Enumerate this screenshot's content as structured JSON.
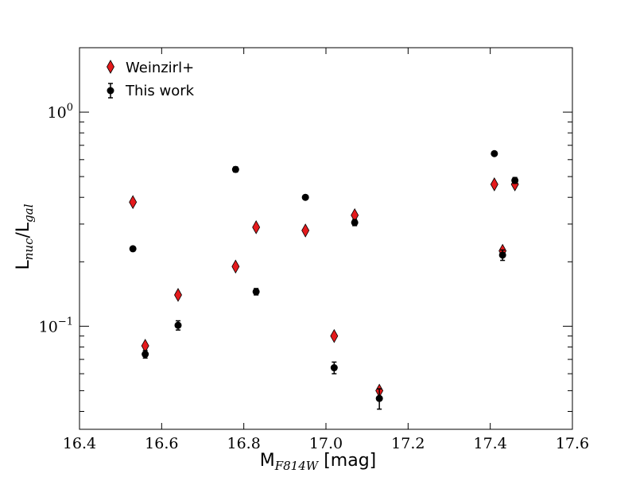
{
  "chart_data": {
    "type": "scatter",
    "title": "",
    "xlabel": {
      "main": "M",
      "sub": "F814W",
      "suffix": " [mag]"
    },
    "ylabel": {
      "main": "L",
      "sub1": "nuc",
      "mid": "/L",
      "sub2": "gal"
    },
    "xlim": [
      16.4,
      17.6
    ],
    "ylim": [
      0.033,
      2.0
    ],
    "yscale": "log",
    "grid": false,
    "legend": "top-left",
    "x_ticks": [
      "16.4",
      "16.6",
      "16.8",
      "17.0",
      "17.2",
      "17.4",
      "17.6"
    ],
    "x_tick_values": [
      16.4,
      16.6,
      16.8,
      17.0,
      17.2,
      17.4,
      17.6
    ],
    "y_ticks": [
      {
        "value": 1.0,
        "base": "10",
        "exp": "0"
      },
      {
        "value": 0.1,
        "base": "10",
        "exp": "−1"
      }
    ],
    "series": [
      {
        "name": "Weinzirl+",
        "marker": "diamond",
        "color": "#e41a1c",
        "points": [
          {
            "x": 16.53,
            "y": 0.38
          },
          {
            "x": 16.56,
            "y": 0.081
          },
          {
            "x": 16.64,
            "y": 0.14
          },
          {
            "x": 16.78,
            "y": 0.19
          },
          {
            "x": 16.83,
            "y": 0.29
          },
          {
            "x": 16.95,
            "y": 0.28
          },
          {
            "x": 17.02,
            "y": 0.09
          },
          {
            "x": 17.07,
            "y": 0.33
          },
          {
            "x": 17.13,
            "y": 0.05
          },
          {
            "x": 17.41,
            "y": 0.46
          },
          {
            "x": 17.43,
            "y": 0.225
          },
          {
            "x": 17.46,
            "y": 0.46
          }
        ]
      },
      {
        "name": "This work",
        "marker": "circle",
        "color": "#000000",
        "points": [
          {
            "x": 16.53,
            "y": 0.23,
            "err": 0.0
          },
          {
            "x": 16.56,
            "y": 0.074,
            "err": 0.003
          },
          {
            "x": 16.64,
            "y": 0.101,
            "err": 0.005
          },
          {
            "x": 16.78,
            "y": 0.54,
            "err": 0.015
          },
          {
            "x": 16.83,
            "y": 0.145,
            "err": 0.005
          },
          {
            "x": 16.95,
            "y": 0.4,
            "err": 0.0
          },
          {
            "x": 17.02,
            "y": 0.064,
            "err": 0.004
          },
          {
            "x": 17.07,
            "y": 0.305,
            "err": 0.01
          },
          {
            "x": 17.13,
            "y": 0.046,
            "err": 0.005
          },
          {
            "x": 17.41,
            "y": 0.64,
            "err": 0.0
          },
          {
            "x": 17.43,
            "y": 0.215,
            "err": 0.012
          },
          {
            "x": 17.46,
            "y": 0.48,
            "err": 0.015
          }
        ]
      }
    ]
  }
}
